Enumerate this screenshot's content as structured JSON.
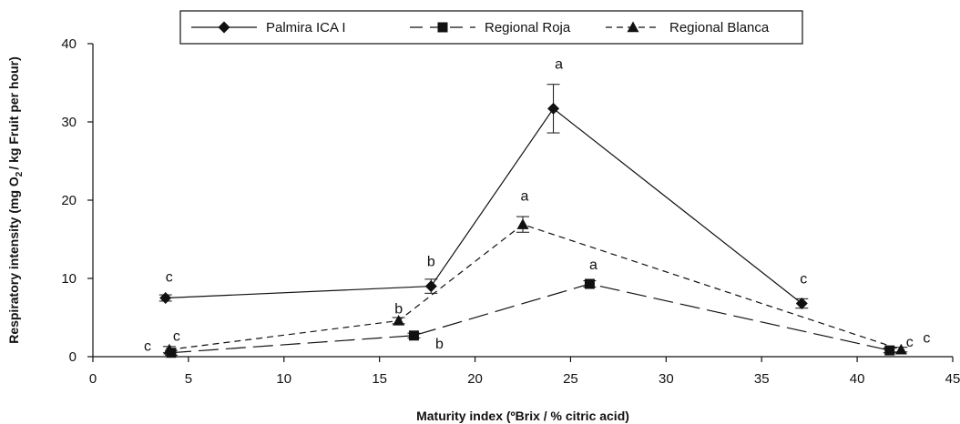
{
  "chart_data": {
    "type": "line",
    "xlabel": "Maturity index (ºBrix / % citric acid)",
    "ylabel_parts": [
      "Respiratory intensity (mg O",
      "2",
      "/ kg Fruit per hour)"
    ],
    "xlim": [
      0,
      45
    ],
    "ylim": [
      0,
      40
    ],
    "xticks": [
      "0",
      "5",
      "10",
      "15",
      "20",
      "25",
      "30",
      "35",
      "40",
      "45"
    ],
    "yticks": [
      "0",
      "10",
      "20",
      "30",
      "40"
    ],
    "grid": false,
    "legend_position": "top",
    "series": [
      {
        "name": "Palmira ICA I",
        "marker": "diamond",
        "dash": "solid",
        "points": [
          {
            "x": 3.8,
            "y": 7.5,
            "err": 0.4,
            "label": "c"
          },
          {
            "x": 17.7,
            "y": 9.0,
            "err": 0.9,
            "label": "b"
          },
          {
            "x": 24.1,
            "y": 31.7,
            "err": 3.1,
            "label": "a"
          },
          {
            "x": 37.1,
            "y": 6.8,
            "err": 0.6,
            "label": "c"
          }
        ]
      },
      {
        "name": "Regional Roja",
        "marker": "square",
        "dash": "long-dash",
        "points": [
          {
            "x": 4.1,
            "y": 0.5,
            "err": 0.3,
            "label": "c"
          },
          {
            "x": 16.8,
            "y": 2.7,
            "err": 0.3,
            "label": "b"
          },
          {
            "x": 26.0,
            "y": 9.3,
            "err": 0.4,
            "label": "a"
          },
          {
            "x": 41.7,
            "y": 0.8,
            "err": 0.3,
            "label": "c"
          }
        ]
      },
      {
        "name": "Regional Blanca",
        "marker": "triangle",
        "dash": "short-dash",
        "points": [
          {
            "x": 4.0,
            "y": 0.9,
            "err": 0.4,
            "label": "c"
          },
          {
            "x": 16.0,
            "y": 4.6,
            "err": 0.4,
            "label": "b"
          },
          {
            "x": 22.5,
            "y": 16.9,
            "err": 1.0,
            "label": "a"
          },
          {
            "x": 42.3,
            "y": 0.9,
            "err": 0.3,
            "label": "c"
          }
        ]
      }
    ]
  }
}
